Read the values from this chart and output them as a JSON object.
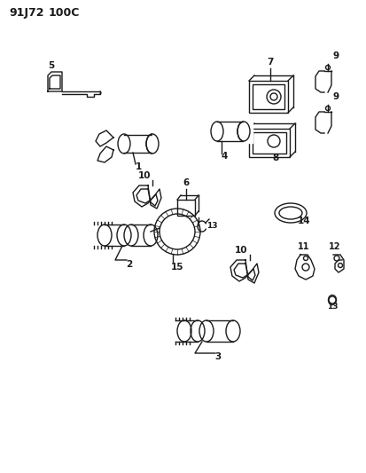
{
  "title_left": "91J72",
  "title_right": "100C",
  "bg_color": "#ffffff",
  "line_color": "#1a1a1a",
  "figsize": [
    4.14,
    5.33
  ],
  "dpi": 100
}
